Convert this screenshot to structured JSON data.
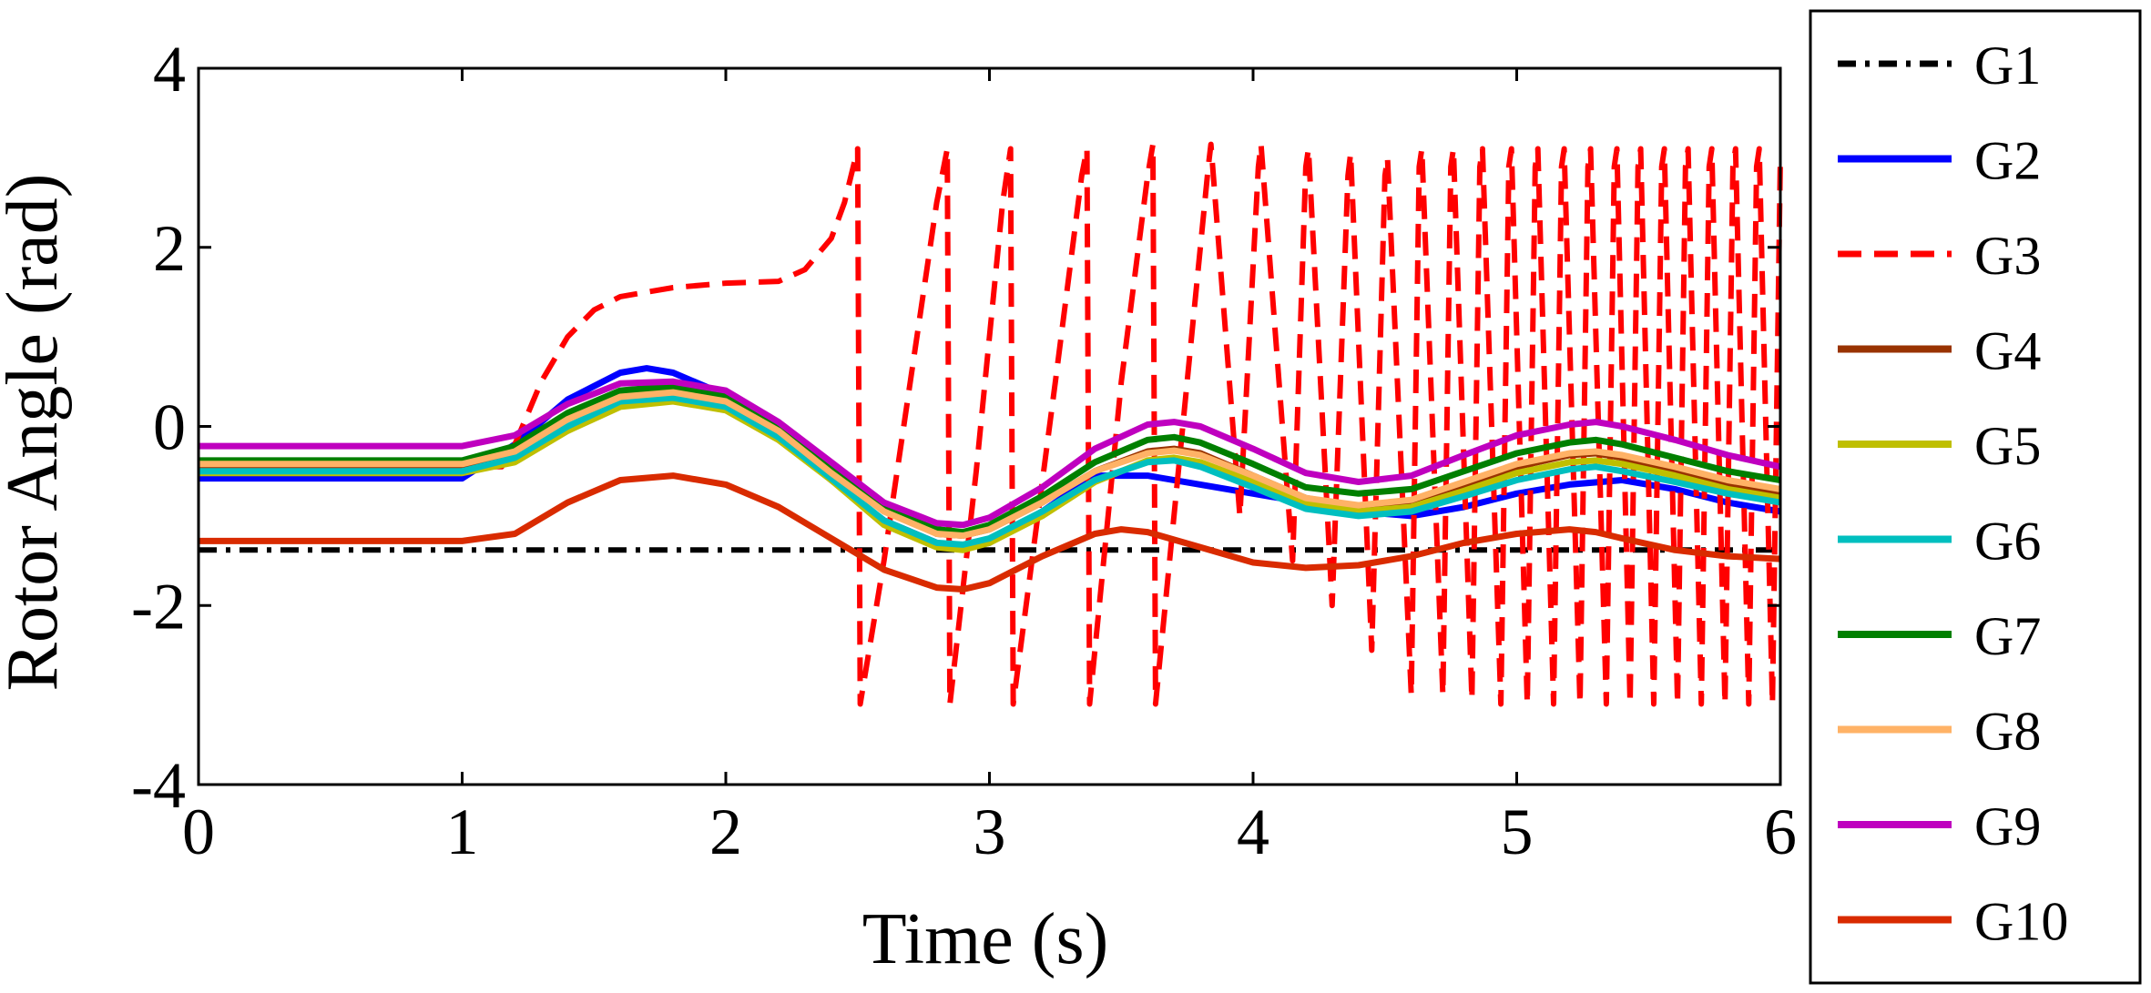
{
  "chart_data": {
    "type": "line",
    "title": "",
    "xlabel": "Time (s)",
    "ylabel": "Rotor Angle (rad)",
    "xlim": [
      0,
      6
    ],
    "ylim": [
      -4,
      4
    ],
    "xticks": [
      0,
      1,
      2,
      3,
      4,
      5,
      6
    ],
    "yticks": [
      4,
      2,
      0,
      -2,
      -4
    ],
    "ytick_labels": [
      "4",
      "2",
      "0",
      "-2",
      "-4"
    ],
    "xtick_labels": [
      "0",
      "1",
      "2",
      "3",
      "4",
      "5",
      "6"
    ],
    "grid": false,
    "legend": "outside-right",
    "series": [
      {
        "name": "G1",
        "color": "#000000",
        "dash": "dashdot",
        "x": [
          0,
          6
        ],
        "y": [
          -1.38,
          -1.38
        ]
      },
      {
        "name": "G2",
        "color": "#0000ff",
        "dash": "solid",
        "x": [
          0,
          1.0,
          1.2,
          1.4,
          1.6,
          1.7,
          1.8,
          2.0,
          2.2,
          2.4,
          2.6,
          2.8,
          2.9,
          3.0,
          3.2,
          3.4,
          3.6,
          3.8,
          4.0,
          4.2,
          4.4,
          4.6,
          4.8,
          5.0,
          5.2,
          5.4,
          5.6,
          5.8,
          6.0
        ],
        "y": [
          -0.58,
          -0.58,
          -0.2,
          0.3,
          0.6,
          0.65,
          0.6,
          0.35,
          -0.1,
          -0.6,
          -1.05,
          -1.3,
          -1.35,
          -1.3,
          -0.95,
          -0.55,
          -0.55,
          -0.65,
          -0.75,
          -0.85,
          -0.95,
          -1.0,
          -0.9,
          -0.75,
          -0.65,
          -0.6,
          -0.7,
          -0.85,
          -0.95
        ]
      },
      {
        "name": "G3",
        "color": "#ff0000",
        "dash": "dashed",
        "x": [
          0,
          1.0,
          1.15,
          1.2,
          1.3,
          1.4,
          1.5,
          1.6,
          1.8,
          2.0,
          2.2,
          2.3,
          2.4,
          2.45,
          2.5,
          2.51,
          2.6,
          2.7,
          2.8,
          2.84,
          2.85,
          2.95,
          3.05,
          3.08,
          3.09,
          3.25,
          3.35,
          3.37,
          3.38,
          3.5,
          3.6,
          3.62,
          3.63,
          3.75,
          3.83,
          3.84,
          3.95,
          4.02,
          4.03,
          4.15,
          4.2,
          4.21,
          4.3,
          4.36,
          4.37,
          4.45,
          4.5,
          4.51,
          4.6,
          4.63,
          4.64,
          4.72,
          4.75,
          4.76,
          4.83,
          4.86,
          4.87,
          4.94,
          4.97,
          4.98,
          5.04,
          5.07,
          5.08,
          5.14,
          5.17,
          5.18,
          5.24,
          5.27,
          5.28,
          5.34,
          5.37,
          5.38,
          5.43,
          5.46,
          5.47,
          5.52,
          5.55,
          5.56,
          5.61,
          5.64,
          5.65,
          5.7,
          5.73,
          5.74,
          5.79,
          5.82,
          5.83,
          5.88,
          5.91,
          5.92,
          5.97,
          6.0
        ],
        "y": [
          -0.45,
          -0.45,
          -0.45,
          -0.2,
          0.5,
          1.0,
          1.3,
          1.45,
          1.55,
          1.6,
          1.62,
          1.75,
          2.1,
          2.5,
          3.1,
          -3.1,
          -1.5,
          0.5,
          2.5,
          3.1,
          -3.1,
          -0.5,
          2.5,
          3.1,
          -3.1,
          0.5,
          2.8,
          3.1,
          -3.1,
          0.5,
          2.8,
          3.15,
          -3.1,
          0.5,
          2.9,
          3.15,
          -1.0,
          2.9,
          3.15,
          -1.5,
          2.9,
          3.1,
          -2.0,
          2.8,
          3.05,
          -2.5,
          2.8,
          3.0,
          -3.0,
          2.9,
          3.1,
          -3.0,
          2.9,
          3.1,
          -3.05,
          2.9,
          3.1,
          -3.1,
          2.9,
          3.1,
          -3.1,
          2.9,
          3.1,
          -3.1,
          2.9,
          3.1,
          -3.1,
          2.9,
          3.1,
          -3.1,
          2.9,
          3.1,
          -3.1,
          2.9,
          3.1,
          -3.1,
          2.9,
          3.1,
          -3.1,
          2.9,
          3.1,
          -3.1,
          2.9,
          3.1,
          -3.1,
          2.9,
          3.1,
          -3.1,
          2.9,
          3.1,
          -3.1,
          3.0
        ]
      },
      {
        "name": "G4",
        "color": "#993300",
        "dash": "solid",
        "x": [
          0,
          1.0,
          1.2,
          1.4,
          1.6,
          1.8,
          2.0,
          2.2,
          2.4,
          2.6,
          2.8,
          2.9,
          3.0,
          3.2,
          3.4,
          3.6,
          3.7,
          3.8,
          4.0,
          4.2,
          4.4,
          4.6,
          4.8,
          5.0,
          5.2,
          5.3,
          5.4,
          5.6,
          5.8,
          6.0
        ],
        "y": [
          -0.45,
          -0.45,
          -0.3,
          0.1,
          0.35,
          0.4,
          0.3,
          0.0,
          -0.45,
          -0.9,
          -1.2,
          -1.22,
          -1.15,
          -0.85,
          -0.5,
          -0.28,
          -0.25,
          -0.3,
          -0.55,
          -0.8,
          -0.9,
          -0.85,
          -0.65,
          -0.45,
          -0.32,
          -0.3,
          -0.35,
          -0.5,
          -0.65,
          -0.75
        ]
      },
      {
        "name": "G5",
        "color": "#bfbf00",
        "dash": "solid",
        "x": [
          0,
          1.0,
          1.2,
          1.4,
          1.6,
          1.8,
          2.0,
          2.2,
          2.4,
          2.6,
          2.8,
          2.9,
          3.0,
          3.2,
          3.4,
          3.6,
          3.7,
          3.8,
          4.0,
          4.2,
          4.4,
          4.6,
          4.8,
          5.0,
          5.2,
          5.3,
          5.4,
          5.6,
          5.8,
          6.0
        ],
        "y": [
          -0.52,
          -0.52,
          -0.4,
          -0.05,
          0.22,
          0.28,
          0.18,
          -0.15,
          -0.6,
          -1.1,
          -1.35,
          -1.38,
          -1.3,
          -1.0,
          -0.62,
          -0.38,
          -0.35,
          -0.4,
          -0.62,
          -0.85,
          -0.95,
          -0.9,
          -0.72,
          -0.52,
          -0.4,
          -0.38,
          -0.42,
          -0.55,
          -0.7,
          -0.8
        ]
      },
      {
        "name": "G6",
        "color": "#00bfbf",
        "dash": "solid",
        "x": [
          0,
          1.0,
          1.2,
          1.4,
          1.6,
          1.8,
          2.0,
          2.2,
          2.4,
          2.6,
          2.8,
          2.9,
          3.0,
          3.2,
          3.4,
          3.6,
          3.7,
          3.8,
          4.0,
          4.2,
          4.4,
          4.6,
          4.8,
          5.0,
          5.2,
          5.3,
          5.4,
          5.6,
          5.8,
          6.0
        ],
        "y": [
          -0.5,
          -0.5,
          -0.35,
          0.0,
          0.28,
          0.32,
          0.22,
          -0.12,
          -0.58,
          -1.05,
          -1.3,
          -1.32,
          -1.25,
          -0.95,
          -0.6,
          -0.4,
          -0.38,
          -0.45,
          -0.68,
          -0.92,
          -1.0,
          -0.95,
          -0.78,
          -0.6,
          -0.48,
          -0.45,
          -0.5,
          -0.62,
          -0.75,
          -0.85
        ]
      },
      {
        "name": "G7",
        "color": "#007f00",
        "dash": "solid",
        "x": [
          0,
          1.0,
          1.2,
          1.4,
          1.6,
          1.8,
          2.0,
          2.2,
          2.4,
          2.6,
          2.8,
          2.9,
          3.0,
          3.2,
          3.4,
          3.6,
          3.7,
          3.8,
          4.0,
          4.2,
          4.4,
          4.6,
          4.8,
          5.0,
          5.2,
          5.3,
          5.4,
          5.6,
          5.8,
          6.0
        ],
        "y": [
          -0.38,
          -0.38,
          -0.22,
          0.15,
          0.4,
          0.45,
          0.35,
          0.0,
          -0.45,
          -0.9,
          -1.15,
          -1.18,
          -1.1,
          -0.78,
          -0.4,
          -0.15,
          -0.12,
          -0.18,
          -0.42,
          -0.68,
          -0.75,
          -0.7,
          -0.5,
          -0.3,
          -0.18,
          -0.15,
          -0.2,
          -0.35,
          -0.5,
          -0.6
        ]
      },
      {
        "name": "G8",
        "color": "#ffb266",
        "dash": "solid",
        "x": [
          0,
          1.0,
          1.2,
          1.4,
          1.6,
          1.8,
          2.0,
          2.2,
          2.4,
          2.6,
          2.8,
          2.9,
          3.0,
          3.2,
          3.4,
          3.6,
          3.7,
          3.8,
          4.0,
          4.2,
          4.4,
          4.6,
          4.8,
          5.0,
          5.2,
          5.3,
          5.4,
          5.6,
          5.8,
          6.0
        ],
        "y": [
          -0.42,
          -0.42,
          -0.28,
          0.08,
          0.33,
          0.38,
          0.28,
          -0.05,
          -0.52,
          -0.95,
          -1.2,
          -1.22,
          -1.15,
          -0.85,
          -0.5,
          -0.3,
          -0.27,
          -0.32,
          -0.55,
          -0.8,
          -0.88,
          -0.82,
          -0.62,
          -0.42,
          -0.3,
          -0.28,
          -0.32,
          -0.45,
          -0.6,
          -0.7
        ]
      },
      {
        "name": "G9",
        "color": "#bf00bf",
        "dash": "solid",
        "x": [
          0,
          1.0,
          1.2,
          1.4,
          1.6,
          1.8,
          2.0,
          2.2,
          2.4,
          2.6,
          2.8,
          2.9,
          3.0,
          3.2,
          3.4,
          3.6,
          3.7,
          3.8,
          4.0,
          4.2,
          4.4,
          4.6,
          4.8,
          5.0,
          5.2,
          5.3,
          5.4,
          5.6,
          5.8,
          6.0
        ],
        "y": [
          -0.22,
          -0.22,
          -0.1,
          0.25,
          0.48,
          0.5,
          0.4,
          0.05,
          -0.4,
          -0.85,
          -1.08,
          -1.1,
          -1.02,
          -0.68,
          -0.25,
          0.02,
          0.05,
          0.0,
          -0.25,
          -0.52,
          -0.62,
          -0.55,
          -0.32,
          -0.1,
          0.02,
          0.05,
          0.0,
          -0.15,
          -0.32,
          -0.45
        ]
      },
      {
        "name": "G10",
        "color": "#d92b00",
        "dash": "solid",
        "x": [
          0,
          1.0,
          1.2,
          1.4,
          1.6,
          1.8,
          2.0,
          2.2,
          2.4,
          2.6,
          2.8,
          2.9,
          3.0,
          3.2,
          3.4,
          3.5,
          3.6,
          3.8,
          4.0,
          4.2,
          4.4,
          4.6,
          4.8,
          5.0,
          5.2,
          5.3,
          5.4,
          5.6,
          5.8,
          6.0
        ],
        "y": [
          -1.28,
          -1.28,
          -1.2,
          -0.85,
          -0.6,
          -0.55,
          -0.65,
          -0.9,
          -1.25,
          -1.6,
          -1.8,
          -1.82,
          -1.75,
          -1.45,
          -1.2,
          -1.15,
          -1.18,
          -1.35,
          -1.52,
          -1.58,
          -1.55,
          -1.45,
          -1.3,
          -1.2,
          -1.15,
          -1.18,
          -1.25,
          -1.38,
          -1.45,
          -1.48
        ]
      }
    ]
  }
}
